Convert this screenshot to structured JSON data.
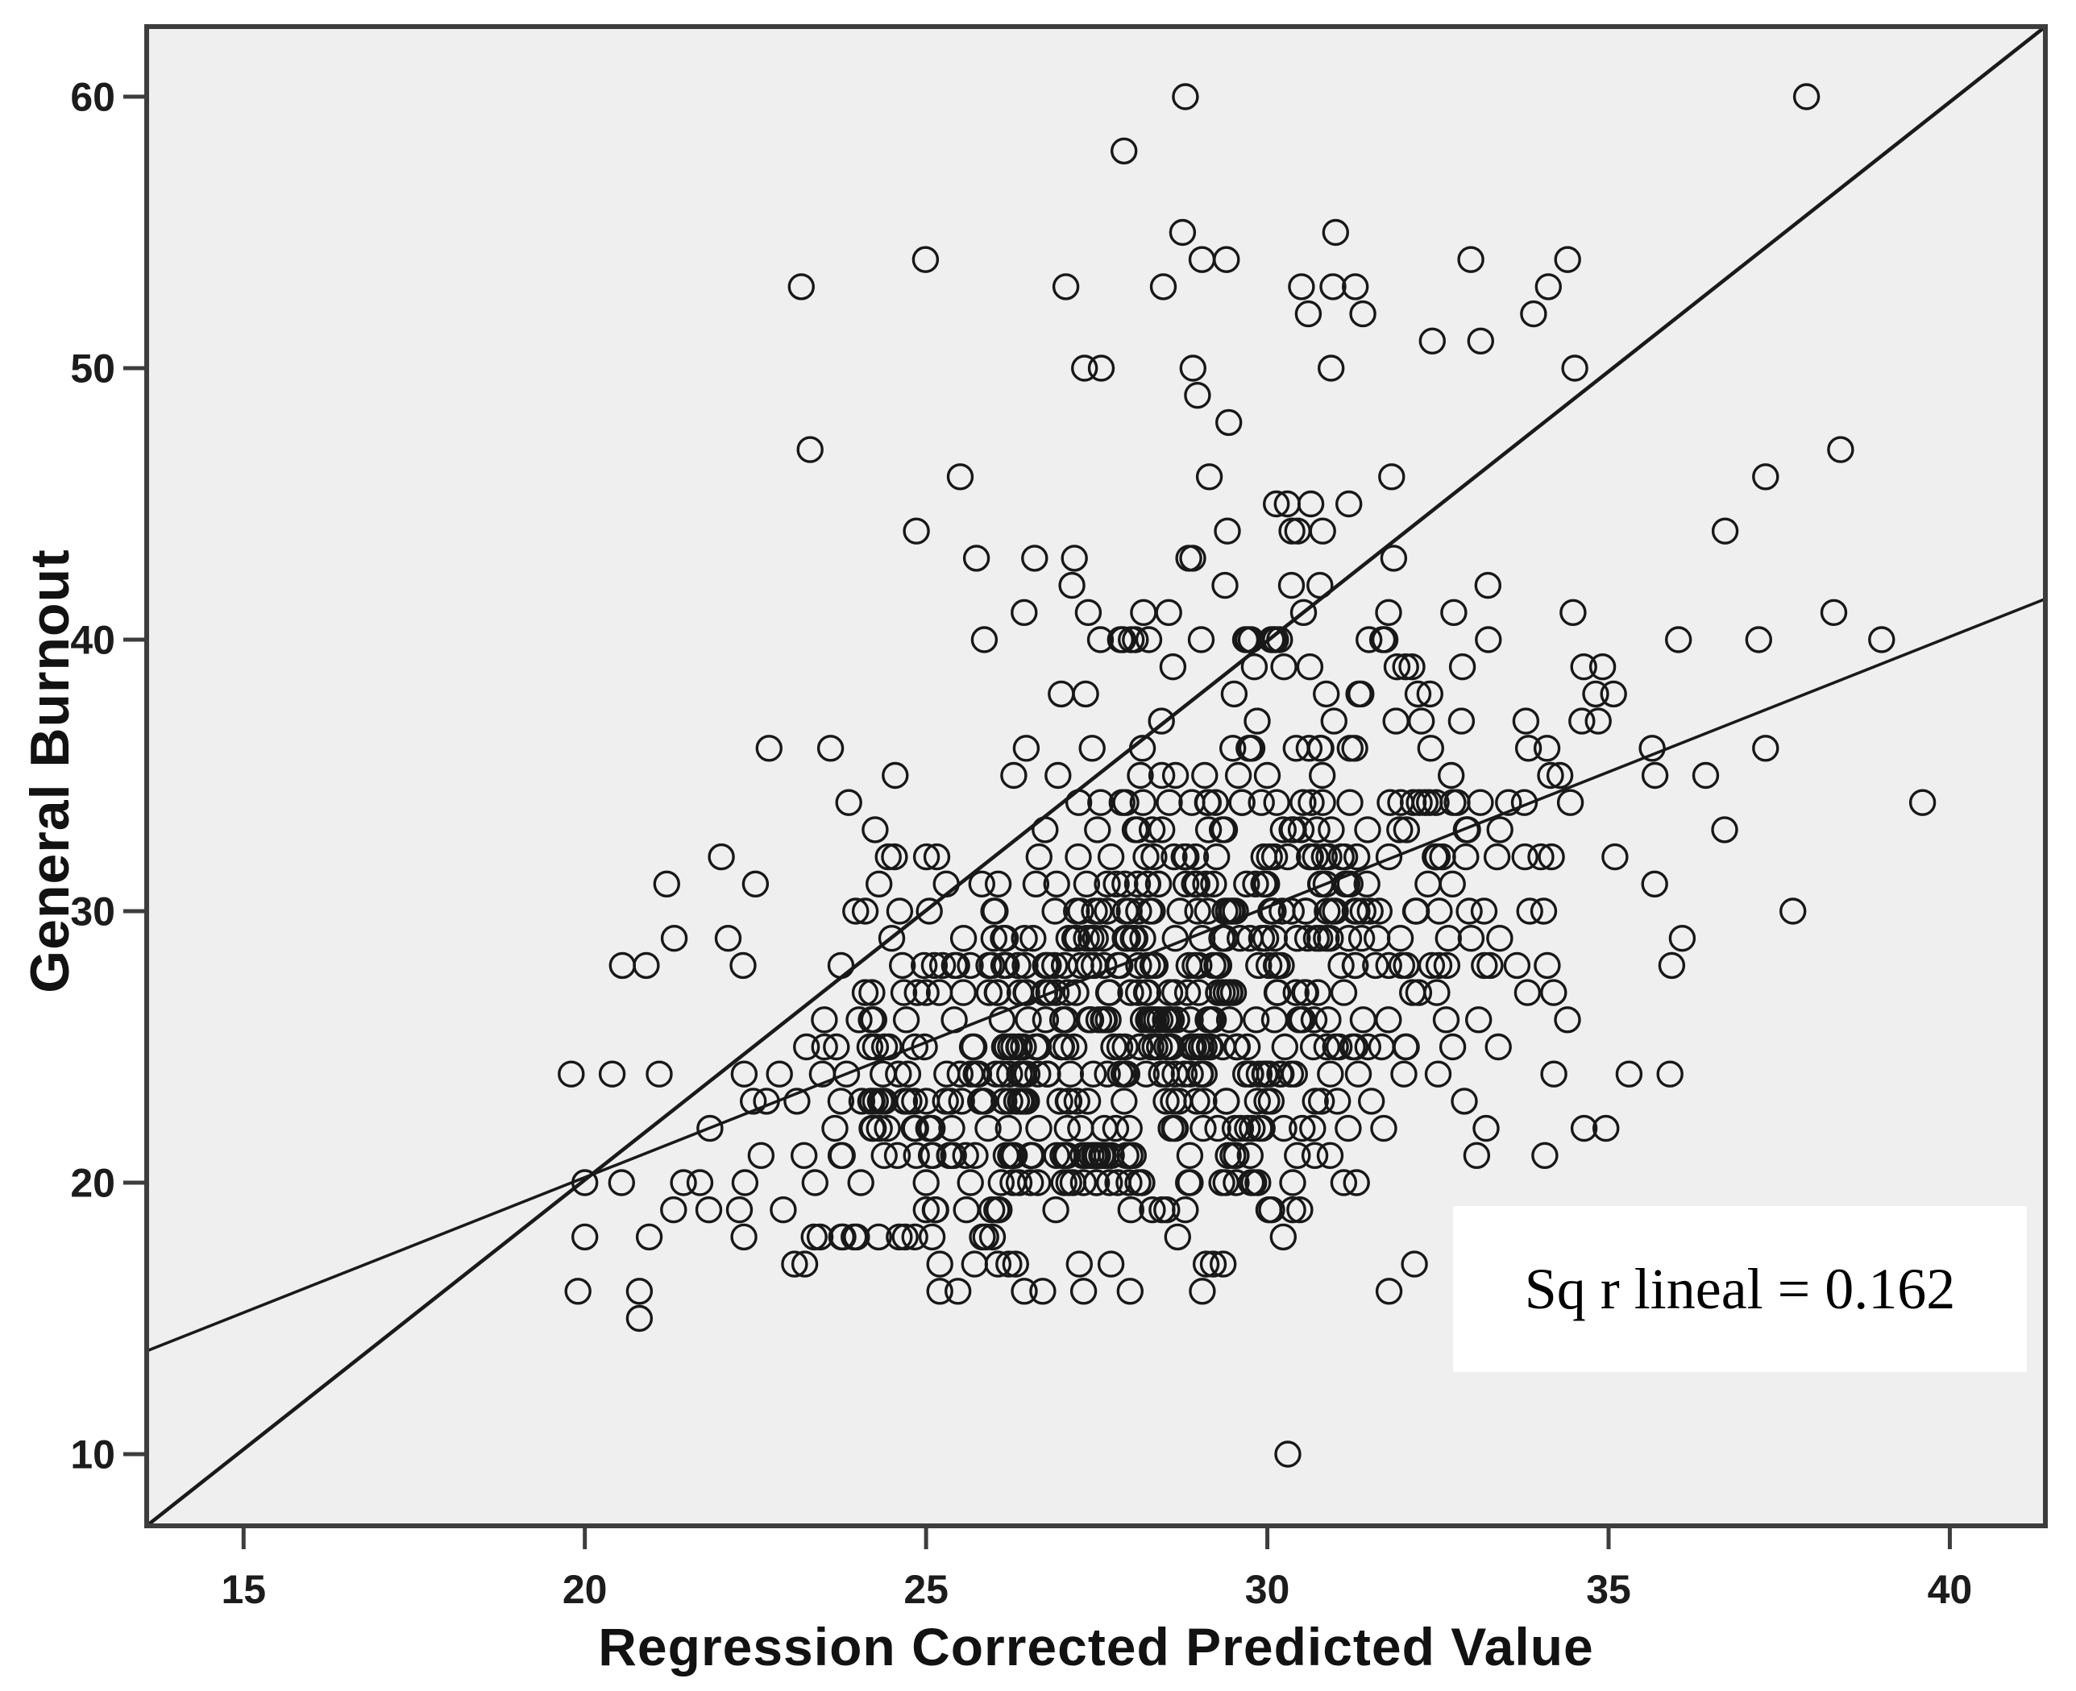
{
  "chart_data": {
    "type": "scatter",
    "title": "",
    "xlabel": "Regression Corrected Predicted Value",
    "ylabel": "General Burnout",
    "x_ticks": [
      15,
      20,
      25,
      30,
      35,
      40
    ],
    "y_ticks": [
      10,
      20,
      30,
      40,
      50,
      60
    ],
    "xlim": [
      13.58,
      41.4
    ],
    "ylim": [
      7.36,
      62.58
    ],
    "grid": false,
    "legend": "none",
    "annotation": {
      "text": "Sq r lineal = 0.162"
    },
    "marker": {
      "shape": "open-circle",
      "radius_px": 15,
      "stroke_px": 3.4
    },
    "lines": [
      {
        "name": "steep-reference-line",
        "x1": 13.58,
        "y1": 7.36,
        "x2": 41.4,
        "y2": 62.58,
        "stroke_px": 4.6
      },
      {
        "name": "shallow-regression-line",
        "x1": 13.58,
        "y1": 13.8,
        "x2": 41.4,
        "y2": 41.5,
        "stroke_px": 3.6
      }
    ],
    "cloud": {
      "seed": 11,
      "core": {
        "n": 800,
        "x_mean": 28.3,
        "x_sd": 2.9,
        "slope": 0.97,
        "intercept": -0.9,
        "resid_sd": 5.3,
        "x_range": [
          19.6,
          36.8
        ],
        "y_range": [
          16,
          46
        ],
        "y_integer": true
      },
      "upper": {
        "n": 60,
        "x_mean": 29.3,
        "x_sd": 2.6,
        "x_range": [
          23.0,
          36.5
        ],
        "y_base": 40,
        "y_span": 16
      }
    },
    "outlier_points": [
      [
        30.3,
        10
      ],
      [
        20.8,
        15
      ],
      [
        19.9,
        16
      ],
      [
        20.8,
        16
      ],
      [
        20.0,
        18
      ],
      [
        21.3,
        19
      ],
      [
        20.0,
        20
      ],
      [
        19.8,
        24
      ],
      [
        20.4,
        24
      ],
      [
        20.9,
        28
      ],
      [
        22.1,
        29
      ],
      [
        21.2,
        31
      ],
      [
        22.5,
        31
      ],
      [
        22.0,
        32
      ],
      [
        22.7,
        36
      ],
      [
        23.6,
        36
      ],
      [
        23.3,
        47
      ],
      [
        25.5,
        46
      ],
      [
        27.9,
        58
      ],
      [
        28.8,
        60
      ],
      [
        37.9,
        60
      ],
      [
        31.0,
        55
      ],
      [
        29.4,
        54
      ],
      [
        34.4,
        54
      ],
      [
        30.5,
        53
      ],
      [
        30.6,
        52
      ],
      [
        31.4,
        52
      ],
      [
        38.4,
        47
      ],
      [
        37.3,
        46
      ],
      [
        38.3,
        41
      ],
      [
        37.2,
        40
      ],
      [
        39.0,
        40
      ],
      [
        39.6,
        34
      ],
      [
        37.3,
        36
      ],
      [
        37.7,
        30
      ],
      [
        36.7,
        33
      ],
      [
        35.9,
        24
      ],
      [
        35.3,
        24
      ]
    ]
  },
  "colors": {
    "page_bg": "#ffffff",
    "plot_bg": "#efefef",
    "frame": "#3d3d3d",
    "tick": "#3d3d3d",
    "tick_label": "#1c1c1c",
    "marker": "#181818",
    "line": "#1a1a1a",
    "annotation_bg": "#ffffff",
    "annotation_text": "#000000"
  }
}
